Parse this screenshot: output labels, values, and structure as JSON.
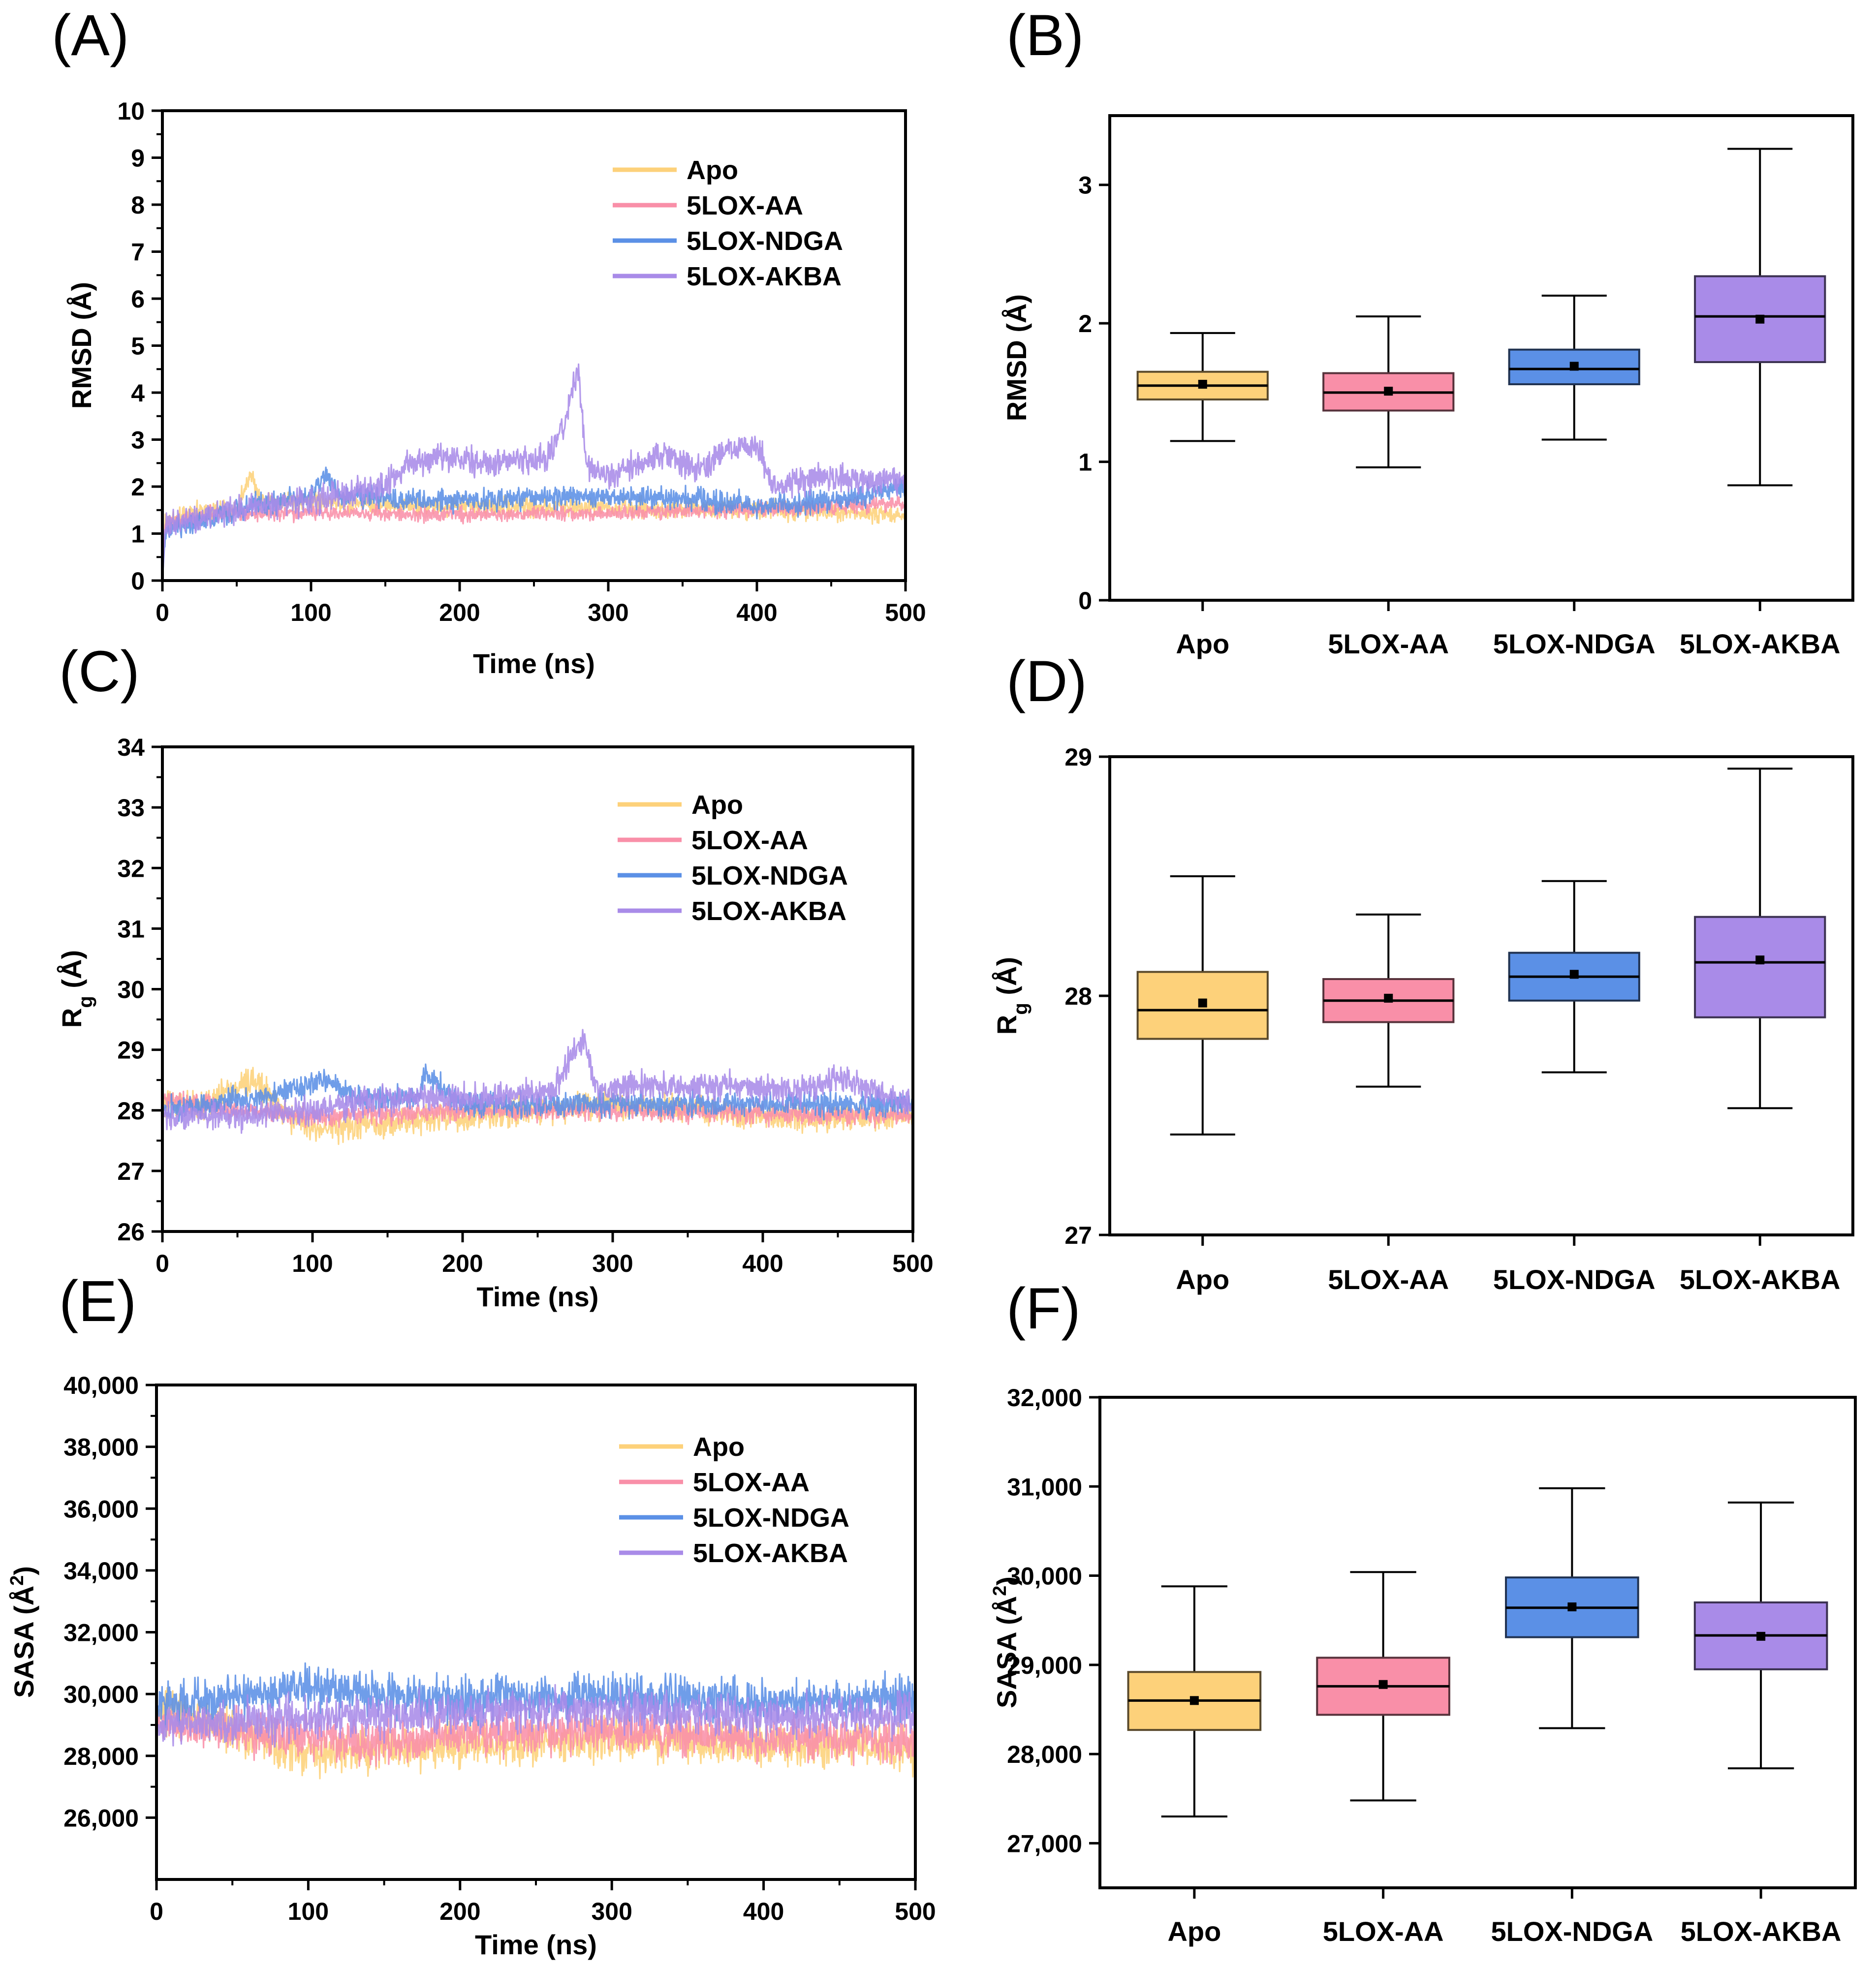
{
  "colors": {
    "Apo": "#fdd17a",
    "5LOX-AA": "#f98fa8",
    "5LOX-NDGA": "#5b90e6",
    "5LOX-AKBA": "#a98be8"
  },
  "panel_labels": [
    "(A)",
    "(B)",
    "(C)",
    "(D)",
    "(E)",
    "(F)"
  ],
  "chart_data": [
    {
      "id": "A",
      "type": "line",
      "xlabel": "Time (ns)",
      "ylabel": "RMSD (Å)",
      "xlim": [
        0,
        500
      ],
      "ylim": [
        0,
        10
      ],
      "xticks": [
        0,
        100,
        200,
        300,
        400,
        500
      ],
      "yticks": [
        0,
        1,
        2,
        3,
        4,
        5,
        6,
        7,
        8,
        9,
        10
      ],
      "xtick_labels": [
        "0",
        "100",
        "200",
        "300",
        "400",
        "500"
      ],
      "ytick_labels": [
        "0",
        "1",
        "2",
        "3",
        "4",
        "5",
        "6",
        "7",
        "8",
        "9",
        "10"
      ],
      "legend": [
        "Apo",
        "5LOX-AA",
        "5LOX-NDGA",
        "5LOX-AKBA"
      ],
      "legend_position": "upper-right",
      "series": [
        {
          "name": "Apo",
          "noise": 0.12,
          "keypoints": [
            [
              0,
              0
            ],
            [
              2,
              1.2
            ],
            [
              20,
              1.45
            ],
            [
              50,
              1.55
            ],
            [
              60,
              2.3
            ],
            [
              65,
              1.7
            ],
            [
              150,
              1.6
            ],
            [
              300,
              1.55
            ],
            [
              400,
              1.5
            ],
            [
              500,
              1.4
            ]
          ]
        },
        {
          "name": "5LOX-AA",
          "noise": 0.1,
          "keypoints": [
            [
              0,
              0
            ],
            [
              2,
              1.2
            ],
            [
              30,
              1.4
            ],
            [
              100,
              1.45
            ],
            [
              200,
              1.4
            ],
            [
              300,
              1.45
            ],
            [
              400,
              1.5
            ],
            [
              500,
              1.65
            ]
          ]
        },
        {
          "name": "5LOX-NDGA",
          "noise": 0.14,
          "keypoints": [
            [
              0,
              0
            ],
            [
              2,
              1.05
            ],
            [
              30,
              1.3
            ],
            [
              60,
              1.6
            ],
            [
              100,
              1.8
            ],
            [
              110,
              2.3
            ],
            [
              120,
              1.8
            ],
            [
              200,
              1.7
            ],
            [
              300,
              1.8
            ],
            [
              350,
              1.75
            ],
            [
              400,
              1.6
            ],
            [
              450,
              1.7
            ],
            [
              500,
              2.0
            ]
          ]
        },
        {
          "name": "5LOX-AKBA",
          "noise": 0.18,
          "keypoints": [
            [
              0,
              0
            ],
            [
              2,
              1.2
            ],
            [
              50,
              1.5
            ],
            [
              100,
              1.7
            ],
            [
              150,
              2.0
            ],
            [
              170,
              2.6
            ],
            [
              230,
              2.5
            ],
            [
              260,
              2.6
            ],
            [
              270,
              3.3
            ],
            [
              280,
              4.5
            ],
            [
              285,
              2.5
            ],
            [
              300,
              2.2
            ],
            [
              340,
              2.7
            ],
            [
              360,
              2.3
            ],
            [
              380,
              2.8
            ],
            [
              400,
              2.9
            ],
            [
              410,
              2.0
            ],
            [
              450,
              2.2
            ],
            [
              500,
              2.1
            ]
          ]
        }
      ]
    },
    {
      "id": "B",
      "type": "box",
      "xlabel": "",
      "ylabel": "RMSD (Å)",
      "ylim": [
        0,
        3.5
      ],
      "yticks": [
        0,
        1,
        2,
        3
      ],
      "ytick_labels": [
        "0",
        "1",
        "2",
        "3"
      ],
      "categories": [
        "Apo",
        "5LOX-AA",
        "5LOX-NDGA",
        "5LOX-AKBA"
      ],
      "boxes": [
        {
          "min": 1.15,
          "q1": 1.45,
          "median": 1.55,
          "q3": 1.65,
          "max": 1.93,
          "mean": 1.56
        },
        {
          "min": 0.96,
          "q1": 1.37,
          "median": 1.5,
          "q3": 1.64,
          "max": 2.05,
          "mean": 1.51
        },
        {
          "min": 1.16,
          "q1": 1.56,
          "median": 1.67,
          "q3": 1.81,
          "max": 2.2,
          "mean": 1.69
        },
        {
          "min": 0.83,
          "q1": 1.72,
          "median": 2.05,
          "q3": 2.34,
          "max": 3.26,
          "mean": 2.03
        }
      ]
    },
    {
      "id": "C",
      "type": "line",
      "xlabel": "Time (ns)",
      "ylabel": "R",
      "ylabel_sub": "g",
      "ylabel_unit": " (Å)",
      "xlim": [
        0,
        500
      ],
      "ylim": [
        26,
        34
      ],
      "xticks": [
        0,
        100,
        200,
        300,
        400,
        500
      ],
      "yticks": [
        26,
        27,
        28,
        29,
        30,
        31,
        32,
        33,
        34
      ],
      "xtick_labels": [
        "0",
        "100",
        "200",
        "300",
        "400",
        "500"
      ],
      "ytick_labels": [
        "26",
        "27",
        "28",
        "29",
        "30",
        "31",
        "32",
        "33",
        "34"
      ],
      "legend": [
        "Apo",
        "5LOX-AA",
        "5LOX-NDGA",
        "5LOX-AKBA"
      ],
      "legend_position": "upper-right",
      "series": [
        {
          "name": "Apo",
          "noise": 0.14,
          "keypoints": [
            [
              0,
              28.1
            ],
            [
              30,
              28.1
            ],
            [
              60,
              28.5
            ],
            [
              80,
              28.0
            ],
            [
              100,
              27.7
            ],
            [
              150,
              27.8
            ],
            [
              250,
              28.0
            ],
            [
              300,
              28.1
            ],
            [
              400,
              27.9
            ],
            [
              500,
              27.9
            ]
          ]
        },
        {
          "name": "5LOX-AA",
          "noise": 0.1,
          "keypoints": [
            [
              0,
              28.2
            ],
            [
              50,
              28.0
            ],
            [
              100,
              27.9
            ],
            [
              200,
              28.0
            ],
            [
              300,
              28.0
            ],
            [
              400,
              27.95
            ],
            [
              500,
              27.9
            ]
          ]
        },
        {
          "name": "5LOX-NDGA",
          "noise": 0.12,
          "keypoints": [
            [
              0,
              28.0
            ],
            [
              60,
              28.2
            ],
            [
              110,
              28.5
            ],
            [
              130,
              28.2
            ],
            [
              170,
              28.2
            ],
            [
              175,
              28.6
            ],
            [
              200,
              28.1
            ],
            [
              300,
              28.1
            ],
            [
              400,
              28.1
            ],
            [
              500,
              28.1
            ]
          ]
        },
        {
          "name": "5LOX-AKBA",
          "noise": 0.14,
          "keypoints": [
            [
              0,
              27.9
            ],
            [
              50,
              27.9
            ],
            [
              100,
              28.0
            ],
            [
              150,
              28.2
            ],
            [
              200,
              28.2
            ],
            [
              260,
              28.3
            ],
            [
              270,
              28.8
            ],
            [
              280,
              29.2
            ],
            [
              290,
              28.3
            ],
            [
              320,
              28.4
            ],
            [
              380,
              28.4
            ],
            [
              420,
              28.3
            ],
            [
              450,
              28.5
            ],
            [
              500,
              28.1
            ]
          ]
        }
      ]
    },
    {
      "id": "D",
      "type": "box",
      "xlabel": "",
      "ylabel": "R",
      "ylabel_sub": "g",
      "ylabel_unit": " (Å)",
      "ylim": [
        27,
        29
      ],
      "yticks": [
        27,
        28,
        29
      ],
      "ytick_labels": [
        "27",
        "28",
        "29"
      ],
      "categories": [
        "Apo",
        "5LOX-AA",
        "5LOX-NDGA",
        "5LOX-AKBA"
      ],
      "boxes": [
        {
          "min": 27.42,
          "q1": 27.82,
          "median": 27.94,
          "q3": 28.1,
          "max": 28.5,
          "mean": 27.97
        },
        {
          "min": 27.62,
          "q1": 27.89,
          "median": 27.98,
          "q3": 28.07,
          "max": 28.34,
          "mean": 27.99
        },
        {
          "min": 27.68,
          "q1": 27.98,
          "median": 28.08,
          "q3": 28.18,
          "max": 28.48,
          "mean": 28.09
        },
        {
          "min": 27.53,
          "q1": 27.91,
          "median": 28.14,
          "q3": 28.33,
          "max": 28.95,
          "mean": 28.15
        }
      ]
    },
    {
      "id": "E",
      "type": "line",
      "xlabel": "Time (ns)",
      "ylabel": "SASA (Å",
      "ylabel_sup": "2",
      "ylabel_unit": ")",
      "xlim": [
        0,
        500
      ],
      "ylim": [
        24000,
        40000
      ],
      "xticks": [
        0,
        100,
        200,
        300,
        400,
        500
      ],
      "yticks": [
        26000,
        28000,
        30000,
        32000,
        34000,
        36000,
        38000,
        40000
      ],
      "xtick_labels": [
        "0",
        "100",
        "200",
        "300",
        "400",
        "500"
      ],
      "ytick_labels": [
        "26,000",
        "28,000",
        "30,000",
        "32,000",
        "34,000",
        "36,000",
        "38,000",
        "40,000"
      ],
      "legend": [
        "Apo",
        "5LOX-AA",
        "5LOX-NDGA",
        "5LOX-AKBA"
      ],
      "legend_position": "upper-right",
      "series": [
        {
          "name": "Apo",
          "noise": 420,
          "keypoints": [
            [
              0,
              29500
            ],
            [
              50,
              28800
            ],
            [
              100,
              28000
            ],
            [
              150,
              28200
            ],
            [
              200,
              28300
            ],
            [
              300,
              28500
            ],
            [
              400,
              28400
            ],
            [
              500,
              28200
            ]
          ]
        },
        {
          "name": "5LOX-AA",
          "noise": 420,
          "keypoints": [
            [
              0,
              29000
            ],
            [
              50,
              28800
            ],
            [
              100,
              28600
            ],
            [
              150,
              28400
            ],
            [
              200,
              28700
            ],
            [
              300,
              28800
            ],
            [
              400,
              28600
            ],
            [
              500,
              28500
            ]
          ]
        },
        {
          "name": "5LOX-NDGA",
          "noise": 420,
          "keypoints": [
            [
              0,
              29600
            ],
            [
              50,
              29900
            ],
            [
              100,
              30200
            ],
            [
              200,
              29800
            ],
            [
              300,
              30000
            ],
            [
              400,
              29700
            ],
            [
              500,
              29900
            ]
          ]
        },
        {
          "name": "5LOX-AKBA",
          "noise": 400,
          "keypoints": [
            [
              0,
              29000
            ],
            [
              100,
              29200
            ],
            [
              200,
              29400
            ],
            [
              300,
              29500
            ],
            [
              400,
              29300
            ],
            [
              500,
              29300
            ]
          ]
        }
      ]
    },
    {
      "id": "F",
      "type": "box",
      "xlabel": "",
      "ylabel": "SASA (Å",
      "ylabel_sup": "2",
      "ylabel_unit": ")",
      "ylim": [
        26500,
        32000
      ],
      "yticks": [
        27000,
        28000,
        29000,
        30000,
        31000,
        32000
      ],
      "ytick_labels": [
        "27,000",
        "28,000",
        "29,000",
        "30,000",
        "31,000",
        "32,000"
      ],
      "categories": [
        "Apo",
        "5LOX-AA",
        "5LOX-NDGA",
        "5LOX-AKBA"
      ],
      "boxes": [
        {
          "min": 27300,
          "q1": 28270,
          "median": 28600,
          "q3": 28920,
          "max": 29880,
          "mean": 28600
        },
        {
          "min": 27480,
          "q1": 28440,
          "median": 28760,
          "q3": 29080,
          "max": 30040,
          "mean": 28780
        },
        {
          "min": 28290,
          "q1": 29310,
          "median": 29640,
          "q3": 29980,
          "max": 30980,
          "mean": 29650
        },
        {
          "min": 27840,
          "q1": 28950,
          "median": 29330,
          "q3": 29700,
          "max": 30820,
          "mean": 29320
        }
      ]
    }
  ]
}
